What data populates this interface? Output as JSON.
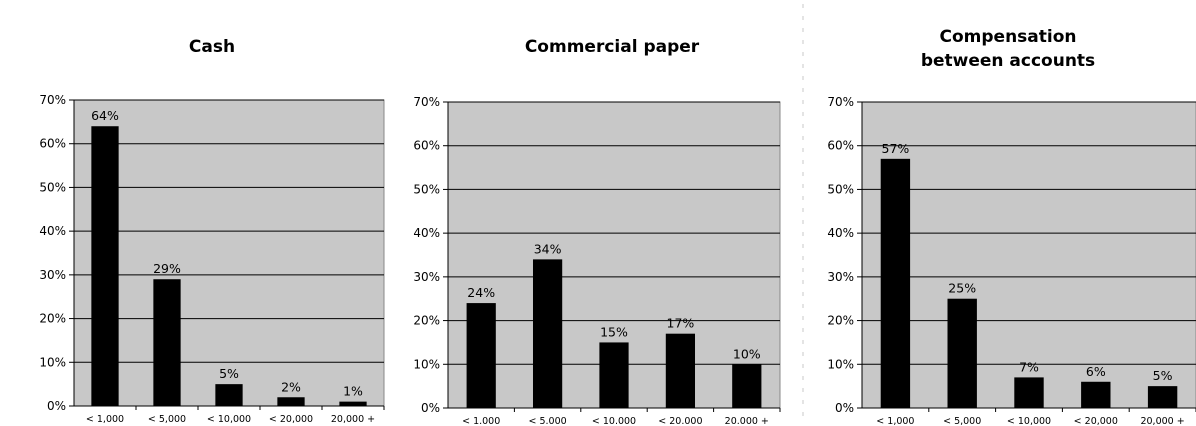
{
  "chart_data": [
    {
      "type": "bar",
      "title": "Cash",
      "categories": [
        "< 1,000",
        "< 5,000",
        "< 10,000",
        "< 20,000",
        "20,000 +"
      ],
      "values": [
        64,
        29,
        5,
        2,
        1
      ],
      "data_labels": [
        "64%",
        "29%",
        "5%",
        "2%",
        "1%"
      ],
      "yticks": [
        "0%",
        "10%",
        "20%",
        "30%",
        "40%",
        "50%",
        "60%",
        "70%"
      ],
      "ylim": [
        0,
        70
      ],
      "grid": true,
      "plot_background": "#c8c8c8",
      "bar_color": "#000000"
    },
    {
      "type": "bar",
      "title": "Commercial paper",
      "categories": [
        "< 1.000",
        "< 5.000",
        "< 10.000",
        "< 20.000",
        "20.000 +"
      ],
      "values": [
        24,
        34,
        15,
        17,
        10
      ],
      "data_labels": [
        "24%",
        "34%",
        "15%",
        "17%",
        "10%"
      ],
      "yticks": [
        "0%",
        "10%",
        "20%",
        "30%",
        "40%",
        "50%",
        "60%",
        "70%"
      ],
      "ylim": [
        0,
        70
      ],
      "grid": true,
      "plot_background": "#c8c8c8",
      "bar_color": "#000000"
    },
    {
      "type": "bar",
      "title": "Compensation between accounts",
      "title_lines": [
        "Compensation",
        "between accounts"
      ],
      "categories": [
        "< 1,000",
        "< 5,000",
        "< 10,000",
        "< 20,000",
        "20,000 +"
      ],
      "values": [
        57,
        25,
        7,
        6,
        5
      ],
      "data_labels": [
        "57%",
        "25%",
        "7%",
        "6%",
        "5%"
      ],
      "yticks": [
        "0%",
        "10%",
        "20%",
        "30%",
        "40%",
        "50%",
        "60%",
        "70%"
      ],
      "ylim": [
        0,
        70
      ],
      "grid": true,
      "plot_background": "#c8c8c8",
      "bar_color": "#000000"
    }
  ]
}
